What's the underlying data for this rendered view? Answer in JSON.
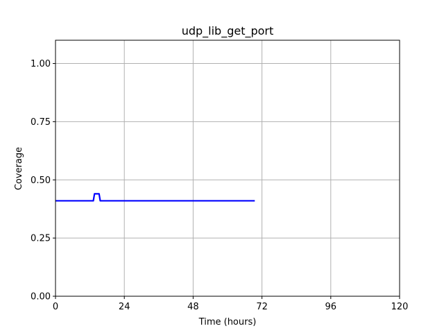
{
  "chart_data": {
    "type": "line",
    "title": "udp_lib_get_port",
    "xlabel": "Time (hours)",
    "ylabel": "Coverage",
    "xlim": [
      0,
      120
    ],
    "ylim": [
      0,
      1.1
    ],
    "xticks": [
      0,
      24,
      48,
      72,
      96,
      120
    ],
    "xtick_labels": [
      "0",
      "24",
      "48",
      "72",
      "96",
      "120"
    ],
    "yticks": [
      0,
      0.25,
      0.5,
      0.75,
      1.0
    ],
    "ytick_labels": [
      "0.00",
      "0.25",
      "0.50",
      "0.75",
      "1.00"
    ],
    "grid": true,
    "series": [
      {
        "color": "#0000ff",
        "x": [
          0,
          13.2,
          13.6,
          15.2,
          15.6,
          69.5
        ],
        "y": [
          0.41,
          0.41,
          0.44,
          0.44,
          0.41,
          0.41
        ]
      }
    ]
  }
}
